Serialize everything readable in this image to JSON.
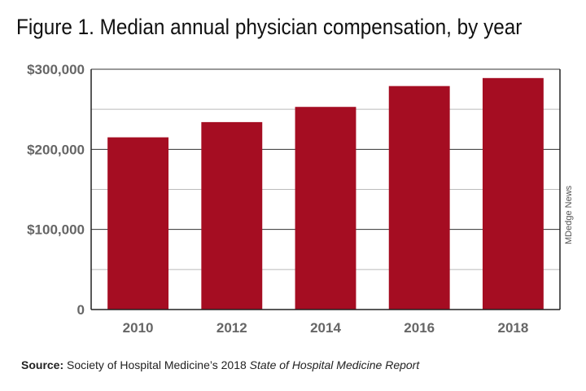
{
  "chart_data": {
    "type": "bar",
    "title": "Figure 1. Median annual physician compensation, by year",
    "categories": [
      "2010",
      "2012",
      "2014",
      "2016",
      "2018"
    ],
    "values": [
      215000,
      234000,
      253000,
      279000,
      289000
    ],
    "yticks": [
      "0",
      "$100,000",
      "$200,000",
      "$300,000"
    ],
    "ylim": [
      0,
      300000
    ],
    "grid": true,
    "bar_color": "#a50d22",
    "xlabel": "",
    "ylabel": ""
  },
  "credit": "MDedge News",
  "source": {
    "label": "Source:",
    "text": "Society of Hospital Medicine’s 2018",
    "italic": "State of Hospital Medicine Report"
  }
}
